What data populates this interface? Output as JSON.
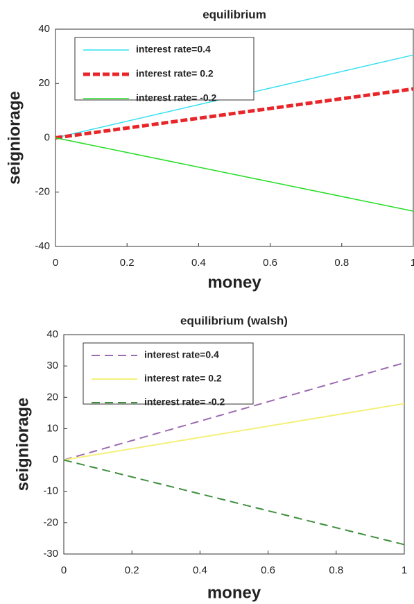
{
  "chart_data": [
    {
      "type": "line",
      "title": "equilibrium",
      "x_label": "money",
      "y_label": "seigniorage",
      "x": [
        0,
        1
      ],
      "xlim": [
        0,
        1
      ],
      "xticks": [
        0,
        0.2,
        0.4,
        0.6,
        0.8,
        1
      ],
      "ylim": [
        -40,
        40
      ],
      "yticks": [
        -40,
        -20,
        0,
        20,
        40
      ],
      "legend": "upper left",
      "series": [
        {
          "name": "interest rate=0.4",
          "color": "#33e0f0",
          "dashed": false,
          "width": 1.5,
          "values": [
            0,
            30.5
          ]
        },
        {
          "name": "interest rate= 0.2",
          "color": "#e8262a",
          "dashed": true,
          "width": 5,
          "values": [
            0,
            18
          ]
        },
        {
          "name": "interest rate= -0.2",
          "color": "#22dd22",
          "dashed": false,
          "width": 1.5,
          "values": [
            0,
            -27
          ]
        }
      ]
    },
    {
      "type": "line",
      "title": "equilibrium (walsh)",
      "x_label": "money",
      "y_label": "seigniorage",
      "x": [
        0,
        1
      ],
      "xlim": [
        0,
        1
      ],
      "xticks": [
        0,
        0.2,
        0.4,
        0.6,
        0.8,
        1
      ],
      "ylim": [
        -30,
        40
      ],
      "yticks": [
        -30,
        -20,
        -10,
        0,
        10,
        20,
        30,
        40
      ],
      "legend": "upper left",
      "series": [
        {
          "name": "interest rate=0.4",
          "color": "#9b6bb0",
          "dashed": true,
          "width": 2,
          "values": [
            0,
            31
          ]
        },
        {
          "name": "interest rate= 0.2",
          "color": "#f5f07a",
          "dashed": false,
          "width": 2,
          "values": [
            0,
            18
          ]
        },
        {
          "name": "interest rate= -0.2",
          "color": "#3f8f3f",
          "dashed": true,
          "width": 2,
          "values": [
            0,
            -27
          ]
        }
      ]
    }
  ]
}
